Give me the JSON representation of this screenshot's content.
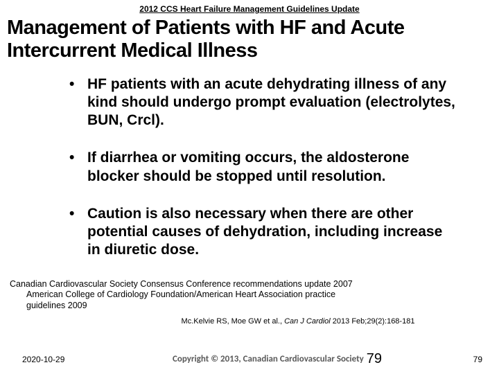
{
  "header": "2012 CCS Heart Failure Management Guidelines Update",
  "title": "Management of Patients with HF and Acute Intercurrent Medical Illness",
  "bullets": [
    "HF patients with an acute dehydrating illness of any kind should undergo prompt evaluation (electrolytes, BUN, Crcl).",
    "If diarrhea or vomiting occurs, the aldosterone blocker should be stopped until resolution.",
    "Caution is also necessary when there are other potential causes of dehydration, including increase in diuretic dose."
  ],
  "reference": {
    "line1": "Canadian Cardiovascular Society Consensus Conference recommendations update 2007",
    "line2": "American College of Cardiology Foundation/American Heart Association practice",
    "line3": "guidelines 2009"
  },
  "citation": {
    "authors": "Mc.Kelvie RS, Moe GW et al., ",
    "journal": "Can J Cardiol ",
    "rest": "2013 Feb;29(2):168-181"
  },
  "footer": {
    "date": "2020-10-29",
    "copyright": "Copyright © 2013, Canadian Cardiovascular Society",
    "page_big": "79",
    "page_small": "79"
  },
  "colors": {
    "text": "#000000",
    "footer_copy": "#595959",
    "background": "#ffffff"
  },
  "typography": {
    "header_fontsize": 12,
    "title_fontsize": 29,
    "bullet_fontsize": 21,
    "reference_fontsize": 12.5,
    "citation_fontsize": 11,
    "footer_fontsize": 12
  }
}
